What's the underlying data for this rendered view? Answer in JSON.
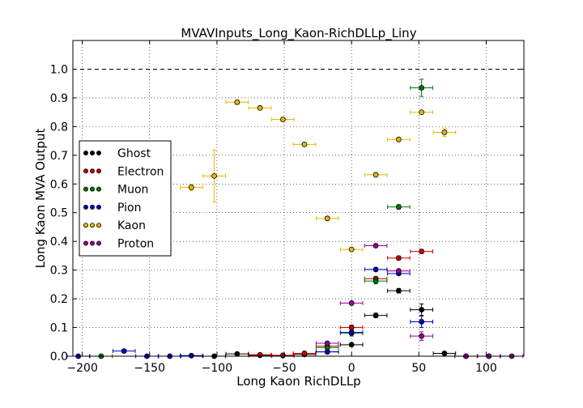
{
  "chart_data": {
    "type": "scatter",
    "title": "MVAVInputs_Long_Kaon-RichDLLp_Liny",
    "xlabel": "Long Kaon RichDLLp",
    "ylabel": "Long Kaon MVA Output",
    "xlim": [
      -207,
      128
    ],
    "ylim": [
      0.0,
      1.1
    ],
    "x_ticks": [
      -200,
      -150,
      -100,
      -50,
      0,
      50,
      100
    ],
    "x_tick_labels": [
      "−200",
      "−150",
      "−100",
      "−50",
      "0",
      "50",
      "100"
    ],
    "y_ticks": [
      0.0,
      0.1,
      0.2,
      0.3,
      0.4,
      0.5,
      0.6,
      0.7,
      0.8,
      0.9,
      1.0
    ],
    "y_tick_labels": [
      "0.0",
      "0.1",
      "0.2",
      "0.3",
      "0.4",
      "0.5",
      "0.6",
      "0.7",
      "0.8",
      "0.9",
      "1.0"
    ],
    "grid": true,
    "reference_line_y": 1.0,
    "legend_position": "center-left",
    "x_halfwidth": 8.3,
    "series": [
      {
        "name": "Ghost",
        "color": "#000000",
        "points": [
          {
            "x": -102,
            "y": 0.0,
            "yerr": 0.0
          },
          {
            "x": -85,
            "y": 0.008,
            "yerr": 0.005
          },
          {
            "x": -68,
            "y": 0.003,
            "yerr": 0.003
          },
          {
            "x": -51,
            "y": 0.002,
            "yerr": 0.002
          },
          {
            "x": -35,
            "y": 0.006,
            "yerr": 0.004
          },
          {
            "x": -18,
            "y": 0.015,
            "yerr": 0.005
          },
          {
            "x": 0,
            "y": 0.04,
            "yerr": 0.005
          },
          {
            "x": 18,
            "y": 0.142,
            "yerr": 0.008
          },
          {
            "x": 35,
            "y": 0.228,
            "yerr": 0.008
          },
          {
            "x": 52,
            "y": 0.162,
            "yerr": 0.02
          },
          {
            "x": 69,
            "y": 0.01,
            "yerr": 0.005
          },
          {
            "x": 102,
            "y": 0.0,
            "yerr": 0.0
          }
        ]
      },
      {
        "name": "Electron",
        "color": "#cc0000",
        "points": [
          {
            "x": -68,
            "y": 0.005,
            "yerr": 0.004
          },
          {
            "x": -51,
            "y": 0.003,
            "yerr": 0.003
          },
          {
            "x": -35,
            "y": 0.01,
            "yerr": 0.005
          },
          {
            "x": -18,
            "y": 0.035,
            "yerr": 0.007
          },
          {
            "x": 0,
            "y": 0.1,
            "yerr": 0.008
          },
          {
            "x": 18,
            "y": 0.27,
            "yerr": 0.008
          },
          {
            "x": 35,
            "y": 0.342,
            "yerr": 0.007
          },
          {
            "x": 52,
            "y": 0.365,
            "yerr": 0.007
          },
          {
            "x": 85,
            "y": 0.0,
            "yerr": 0.0
          }
        ]
      },
      {
        "name": "Muon",
        "color": "#007700",
        "points": [
          {
            "x": -186,
            "y": 0.0,
            "yerr": 0.0
          },
          {
            "x": -18,
            "y": 0.03,
            "yerr": 0.007
          },
          {
            "x": 0,
            "y": 0.08,
            "yerr": 0.01
          },
          {
            "x": 18,
            "y": 0.262,
            "yerr": 0.01
          },
          {
            "x": 35,
            "y": 0.52,
            "yerr": 0.008
          },
          {
            "x": 52,
            "y": 0.935,
            "yerr": 0.03
          }
        ]
      },
      {
        "name": "Pion",
        "color": "#0000cc",
        "points": [
          {
            "x": -203,
            "y": 0.0,
            "yerr": 0.0
          },
          {
            "x": -169,
            "y": 0.018,
            "yerr": 0.005
          },
          {
            "x": -152,
            "y": 0.0,
            "yerr": 0.0
          },
          {
            "x": -135,
            "y": 0.0,
            "yerr": 0.0
          },
          {
            "x": -119,
            "y": 0.002,
            "yerr": 0.002
          },
          {
            "x": -18,
            "y": 0.015,
            "yerr": 0.005
          },
          {
            "x": 0,
            "y": 0.083,
            "yerr": 0.006
          },
          {
            "x": 18,
            "y": 0.302,
            "yerr": 0.006
          },
          {
            "x": 35,
            "y": 0.288,
            "yerr": 0.006
          },
          {
            "x": 52,
            "y": 0.12,
            "yerr": 0.02
          }
        ]
      },
      {
        "name": "Kaon",
        "color": "#e6b800",
        "points": [
          {
            "x": -119,
            "y": 0.588,
            "yerr": 0.01
          },
          {
            "x": -102,
            "y": 0.628,
            "yerr": 0.09
          },
          {
            "x": -85,
            "y": 0.885,
            "yerr": 0.008
          },
          {
            "x": -68,
            "y": 0.865,
            "yerr": 0.005
          },
          {
            "x": -51,
            "y": 0.825,
            "yerr": 0.004
          },
          {
            "x": -35,
            "y": 0.738,
            "yerr": 0.004
          },
          {
            "x": -18,
            "y": 0.48,
            "yerr": 0.004
          },
          {
            "x": 0,
            "y": 0.372,
            "yerr": 0.003
          },
          {
            "x": 18,
            "y": 0.632,
            "yerr": 0.004
          },
          {
            "x": 35,
            "y": 0.755,
            "yerr": 0.004
          },
          {
            "x": 52,
            "y": 0.85,
            "yerr": 0.005
          },
          {
            "x": 69,
            "y": 0.78,
            "yerr": 0.015
          }
        ]
      },
      {
        "name": "Proton",
        "color": "#990099",
        "points": [
          {
            "x": -18,
            "y": 0.045,
            "yerr": 0.005
          },
          {
            "x": 0,
            "y": 0.185,
            "yerr": 0.006
          },
          {
            "x": 18,
            "y": 0.385,
            "yerr": 0.006
          },
          {
            "x": 35,
            "y": 0.297,
            "yerr": 0.006
          },
          {
            "x": 52,
            "y": 0.07,
            "yerr": 0.015
          },
          {
            "x": 85,
            "y": 0.0,
            "yerr": 0.0
          },
          {
            "x": 102,
            "y": 0.0,
            "yerr": 0.0
          },
          {
            "x": 119,
            "y": 0.0,
            "yerr": 0.0
          }
        ]
      }
    ]
  }
}
